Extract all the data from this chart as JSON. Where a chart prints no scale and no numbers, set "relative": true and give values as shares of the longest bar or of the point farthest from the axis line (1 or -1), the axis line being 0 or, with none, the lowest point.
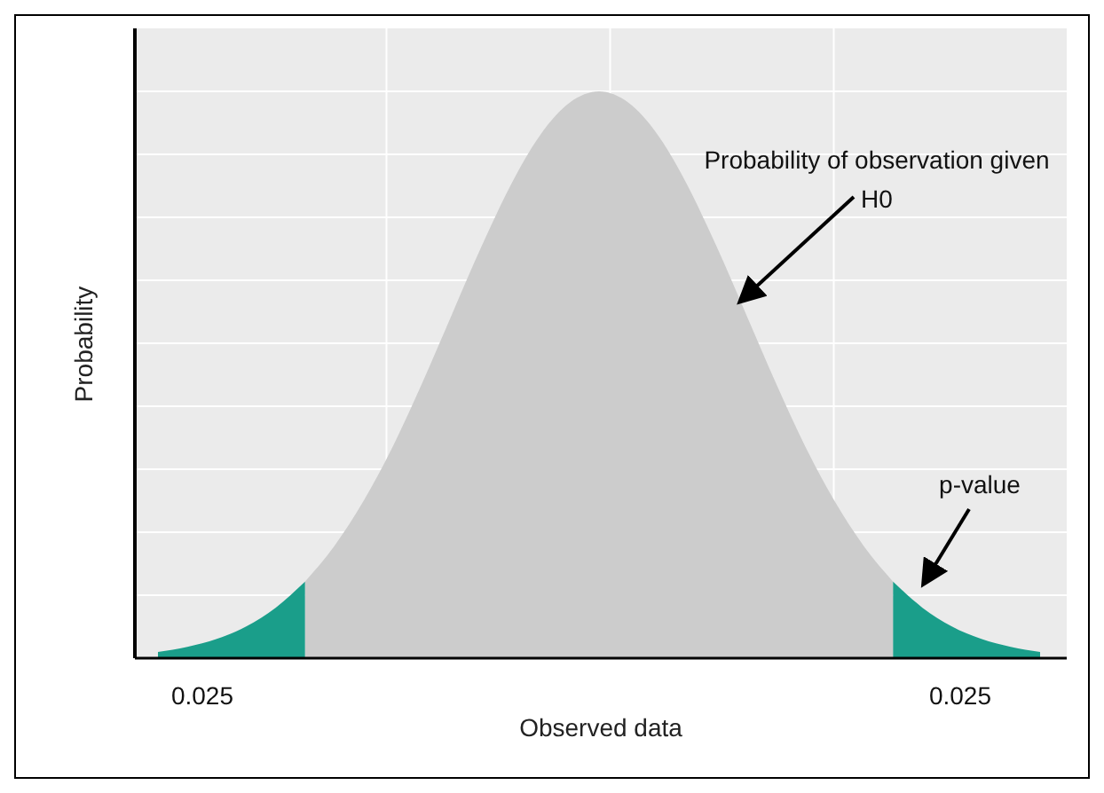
{
  "chart_data": {
    "type": "area",
    "relative": true,
    "xlabel": "Observed data",
    "ylabel": "Probability",
    "grid": true,
    "categories": [
      null,
      null,
      null,
      null,
      null,
      null,
      null,
      null,
      null,
      null,
      null,
      null,
      null,
      null,
      null,
      null,
      null,
      null,
      null,
      null,
      null,
      null,
      null,
      null,
      null,
      null,
      null,
      null,
      null,
      null,
      null
    ],
    "series": [
      {
        "color": "#cccccc",
        "values": [
          null,
          null,
          null,
          null,
          null,
          0.135,
          0.198,
          0.278,
          0.375,
          0.487,
          0.607,
          0.726,
          0.835,
          0.923,
          0.98,
          1,
          0.98,
          0.923,
          0.835,
          0.726,
          0.607,
          0.487,
          0.375,
          0.278,
          0.198,
          0.135,
          null,
          null,
          null,
          null,
          null
        ]
      },
      {
        "color": "#1a9e8a",
        "values": [
          0.011,
          0.02,
          0.034,
          0.056,
          0.089,
          0.135,
          null,
          null,
          null,
          null,
          null,
          null,
          null,
          null,
          null,
          null,
          null,
          null,
          null,
          null,
          null,
          null,
          null,
          null,
          null,
          0.135,
          0.089,
          0.056,
          0.034,
          0.02,
          0.011
        ]
      }
    ],
    "annotations": [
      "Probability of observation given H0",
      "p-value",
      "0.025",
      "0.025"
    ]
  }
}
